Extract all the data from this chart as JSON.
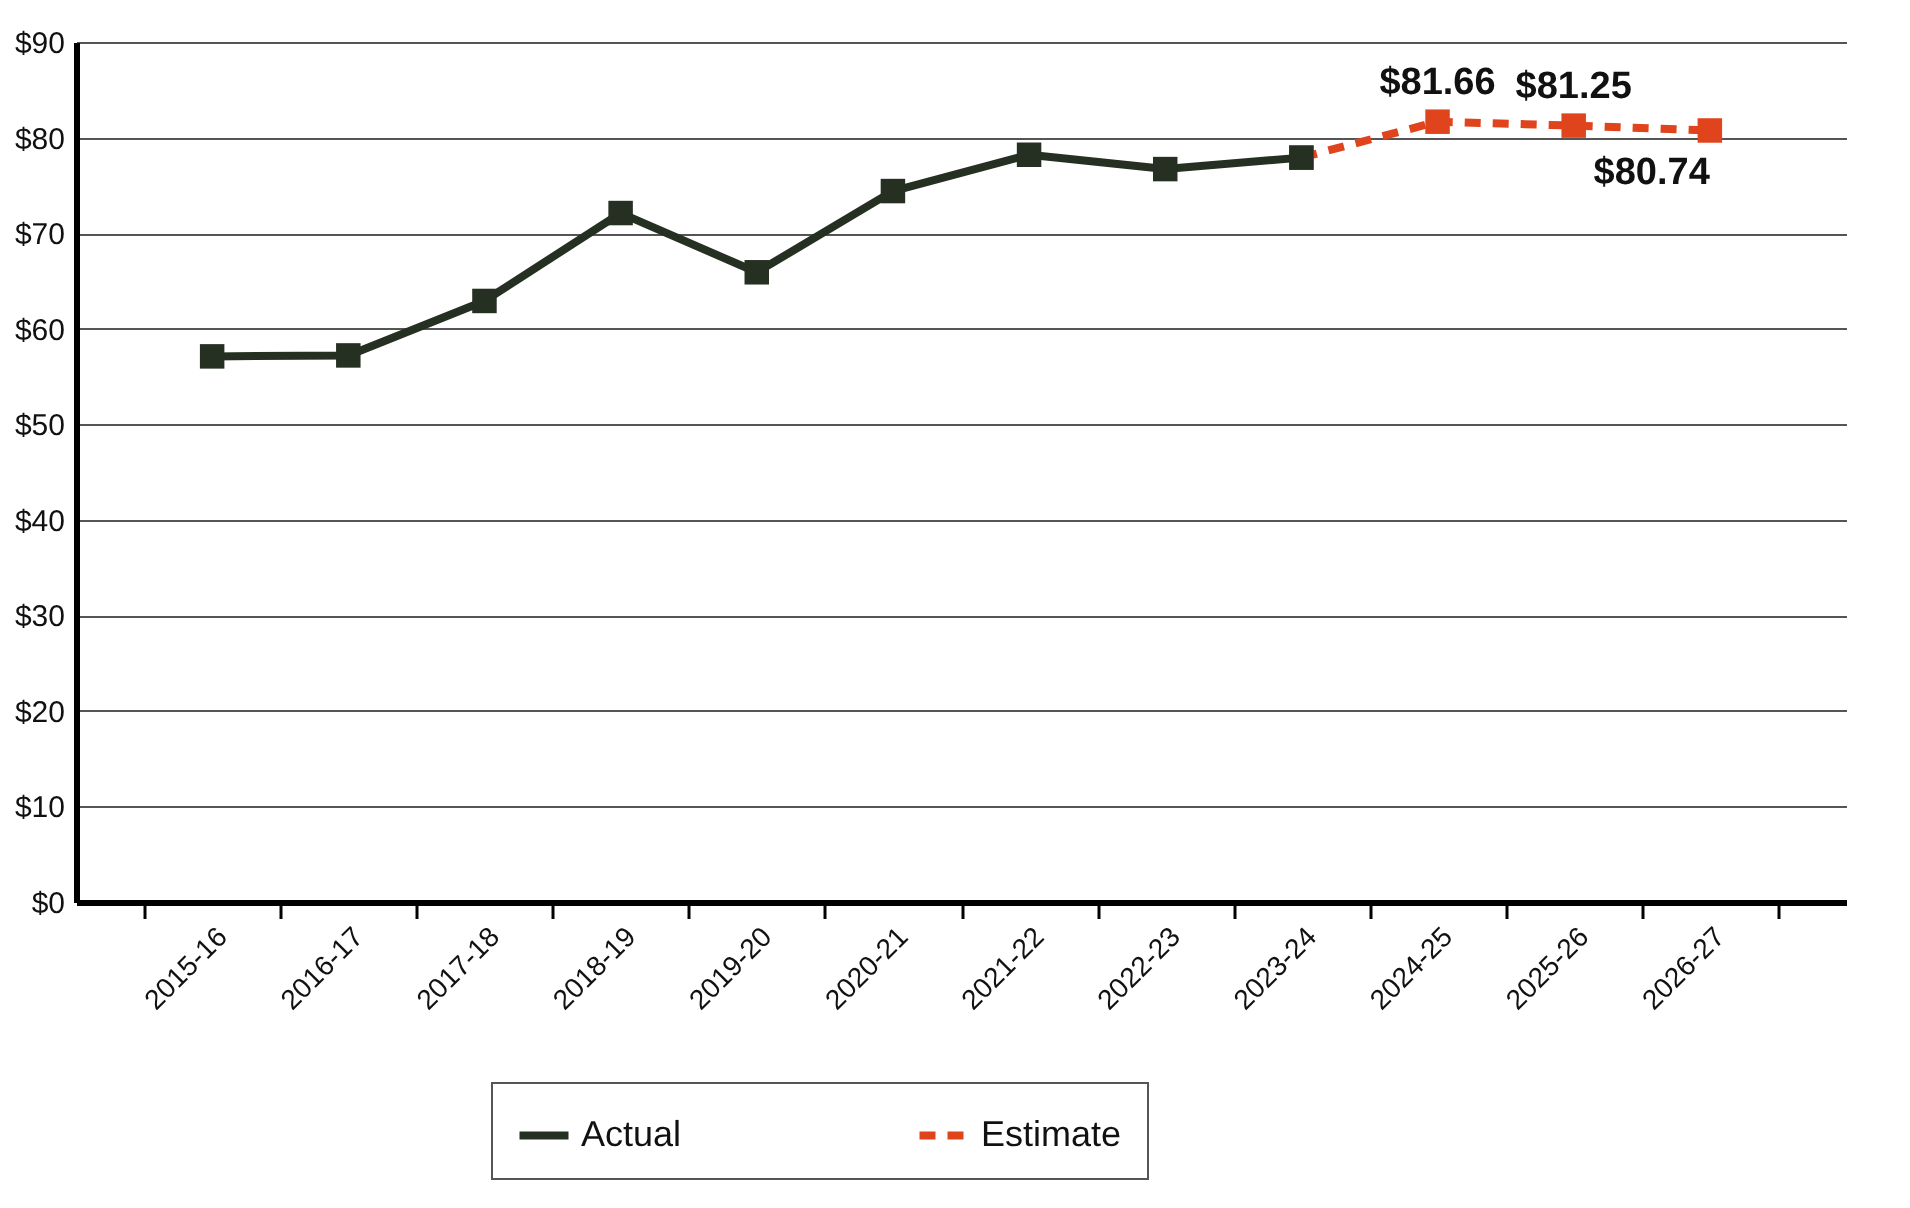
{
  "chart_data": {
    "type": "line",
    "categories": [
      "2015-16",
      "2016-17",
      "2017-18",
      "2018-19",
      "2019-20",
      "2020-21",
      "2021-22",
      "2022-23",
      "2023-24",
      "2024-25",
      "2025-26",
      "2026-27"
    ],
    "series": [
      {
        "name": "Actual",
        "color": "#263022",
        "line_style": "solid",
        "values": [
          57.1,
          57.2,
          62.9,
          72.1,
          65.9,
          74.4,
          78.2,
          76.7,
          77.9,
          null,
          null,
          null
        ]
      },
      {
        "name": "Estimate",
        "color": "#e0441c",
        "line_style": "dashed",
        "values": [
          null,
          null,
          null,
          null,
          null,
          null,
          null,
          null,
          77.9,
          81.66,
          81.25,
          80.74
        ],
        "value_labels": [
          null,
          null,
          null,
          null,
          null,
          null,
          null,
          null,
          null,
          "$81.66",
          "$81.25",
          "$80.74"
        ]
      }
    ],
    "ylim": [
      0,
      90
    ],
    "yticks": [
      {
        "value": 0,
        "label": "$0"
      },
      {
        "value": 10,
        "label": "$10"
      },
      {
        "value": 20,
        "label": "$20"
      },
      {
        "value": 30,
        "label": "$30"
      },
      {
        "value": 40,
        "label": "$40"
      },
      {
        "value": 50,
        "label": "$50"
      },
      {
        "value": 60,
        "label": "$60"
      },
      {
        "value": 70,
        "label": "$70"
      },
      {
        "value": 80,
        "label": "$80"
      },
      {
        "value": 90,
        "label": "$90"
      }
    ],
    "grid": "y",
    "legend": "bottom",
    "marker": "square"
  }
}
